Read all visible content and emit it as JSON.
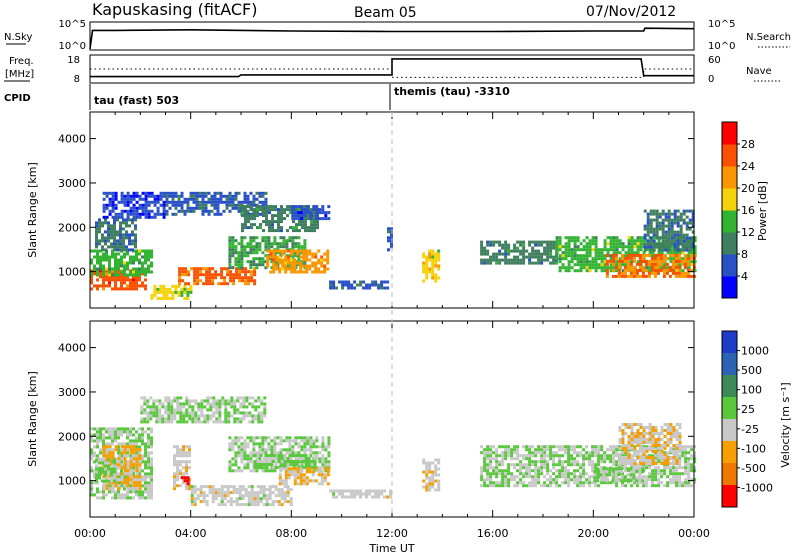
{
  "header": {
    "station": "Kapuskasing (fitACF)",
    "beam": "Beam 05",
    "date": "07/Nov/2012"
  },
  "params": {
    "nsky_label": "N.Sky",
    "nsearch_label": "N.Search",
    "freq_label_1": "Freq.",
    "freq_label_2": "[MHz]",
    "nave_label": "Nave",
    "cpid_label": "CPID",
    "left_ticks_top": [
      "10^5",
      "10^0"
    ],
    "right_ticks_top": [
      "10^5",
      "10^0"
    ],
    "left_ticks_freq": [
      "18",
      "8"
    ],
    "right_ticks_nave": [
      "60",
      "0"
    ],
    "cpid_segments": [
      {
        "label": "tau (fast) 503",
        "start_hour": 0
      },
      {
        "label": "themis (tau) -3310",
        "start_hour": 12
      }
    ]
  },
  "x_axis": {
    "label": "Time UT",
    "ticks": [
      "00:00",
      "04:00",
      "08:00",
      "12:00",
      "16:00",
      "20:00",
      "00:00"
    ]
  },
  "power_colorbar": {
    "label": "Power [dB]",
    "ticks": [
      "28",
      "24",
      "20",
      "16",
      "12",
      "8",
      "4"
    ],
    "colors": [
      "#0000ff",
      "#2a50c8",
      "#3f7f5f",
      "#32b432",
      "#f5d20a",
      "#fa9600",
      "#fa5000",
      "#ff0000"
    ]
  },
  "velocity_colorbar": {
    "label": "Velocity  [m s⁻¹]",
    "ticks": [
      "1000",
      "500",
      "100",
      "25",
      "-25",
      "-100",
      "-500",
      "-1000"
    ],
    "colors": [
      "#1e3cc8",
      "#2c64b4",
      "#3c8a5a",
      "#5ac83c",
      "#c8c8c8",
      "#f5a000",
      "#f07800",
      "#ff0000"
    ]
  },
  "chart_data": [
    {
      "type": "heatmap",
      "panel": "power",
      "xlabel": "",
      "ylabel": "Slant Range [km]",
      "xlim": [
        0,
        24
      ],
      "ylim": [
        180,
        4600
      ],
      "yticks": [
        1000,
        2000,
        3000,
        4000
      ],
      "clim": [
        0,
        32
      ],
      "patches": [
        {
          "t0": 0.0,
          "t1": 2.2,
          "r0": 600,
          "r1": 1050,
          "v": 26
        },
        {
          "t0": 0.0,
          "t1": 2.4,
          "r0": 900,
          "r1": 1500,
          "v": 14
        },
        {
          "t0": 0.2,
          "t1": 1.8,
          "r0": 1500,
          "r1": 2200,
          "v": 9
        },
        {
          "t0": 0.5,
          "t1": 3.0,
          "r0": 2200,
          "r1": 2800,
          "v": 5
        },
        {
          "t0": 2.4,
          "t1": 4.0,
          "r0": 400,
          "r1": 700,
          "v": 18
        },
        {
          "t0": 3.5,
          "t1": 6.5,
          "r0": 700,
          "r1": 1100,
          "v": 25
        },
        {
          "t0": 3.0,
          "t1": 7.0,
          "r0": 2300,
          "r1": 2800,
          "v": 7
        },
        {
          "t0": 5.5,
          "t1": 8.5,
          "r0": 1100,
          "r1": 1800,
          "v": 12
        },
        {
          "t0": 6.0,
          "t1": 9.0,
          "r0": 1900,
          "r1": 2500,
          "v": 10
        },
        {
          "t0": 7.0,
          "t1": 9.5,
          "r0": 1000,
          "r1": 1500,
          "v": 22
        },
        {
          "t0": 8.0,
          "t1": 9.5,
          "r0": 2200,
          "r1": 2500,
          "v": 6
        },
        {
          "t0": 9.5,
          "t1": 11.8,
          "r0": 650,
          "r1": 800,
          "v": 7
        },
        {
          "t0": 11.8,
          "t1": 12.0,
          "r0": 1500,
          "r1": 2000,
          "v": 6
        },
        {
          "t0": 13.2,
          "t1": 13.8,
          "r0": 800,
          "r1": 1500,
          "v": 18
        },
        {
          "t0": 15.5,
          "t1": 18.5,
          "r0": 1200,
          "r1": 1700,
          "v": 10
        },
        {
          "t0": 18.5,
          "t1": 24.0,
          "r0": 1000,
          "r1": 1800,
          "v": 14
        },
        {
          "t0": 20.5,
          "t1": 24.0,
          "r0": 900,
          "r1": 1400,
          "v": 24
        },
        {
          "t0": 22.0,
          "t1": 24.0,
          "r0": 1500,
          "r1": 2400,
          "v": 9
        }
      ]
    },
    {
      "type": "heatmap",
      "panel": "velocity",
      "xlabel": "Time UT",
      "ylabel": "Slant Range [km]",
      "xlim": [
        0,
        24
      ],
      "ylim": [
        180,
        4600
      ],
      "yticks": [
        1000,
        2000,
        3000,
        4000
      ],
      "clim": [
        -1200,
        1200
      ],
      "patches": [
        {
          "t0": 0.0,
          "t1": 2.5,
          "r0": 600,
          "r1": 2200,
          "v": 0
        },
        {
          "t0": 0.5,
          "t1": 2.0,
          "r0": 800,
          "r1": 1800,
          "v": -300
        },
        {
          "t0": 0.2,
          "t1": 1.0,
          "r0": 1000,
          "r1": 1500,
          "v": 60
        },
        {
          "t0": 2.0,
          "t1": 7.0,
          "r0": 2300,
          "r1": 2900,
          "v": 0
        },
        {
          "t0": 3.3,
          "t1": 4.0,
          "r0": 800,
          "r1": 1800,
          "v": -200
        },
        {
          "t0": 3.6,
          "t1": 3.9,
          "r0": 900,
          "r1": 1100,
          "v": -1100
        },
        {
          "t0": 4.0,
          "t1": 8.0,
          "r0": 450,
          "r1": 900,
          "v": -150
        },
        {
          "t0": 5.5,
          "t1": 9.5,
          "r0": 1200,
          "r1": 2000,
          "v": 10
        },
        {
          "t0": 6.5,
          "t1": 9.0,
          "r0": 1300,
          "r1": 1600,
          "v": 80
        },
        {
          "t0": 7.5,
          "t1": 9.5,
          "r0": 900,
          "r1": 1300,
          "v": -300
        },
        {
          "t0": 9.5,
          "t1": 12.0,
          "r0": 650,
          "r1": 800,
          "v": -150
        },
        {
          "t0": 13.2,
          "t1": 13.8,
          "r0": 800,
          "r1": 1500,
          "v": -200
        },
        {
          "t0": 15.5,
          "t1": 24.0,
          "r0": 900,
          "r1": 1800,
          "v": 0
        },
        {
          "t0": 21.0,
          "t1": 23.5,
          "r0": 1400,
          "r1": 2300,
          "v": -250
        },
        {
          "t0": 20.0,
          "t1": 22.0,
          "r0": 1000,
          "r1": 1300,
          "v": 50
        }
      ]
    },
    {
      "type": "line",
      "panel": "n-sky",
      "x": [
        0,
        0.1,
        1,
        4,
        8,
        12,
        16,
        20,
        22,
        22.05,
        24
      ],
      "y": [
        0.2,
        3.5,
        3.5,
        3.6,
        3.4,
        3.3,
        3.3,
        3.4,
        3.4,
        3.9,
        3.8
      ],
      "ylim": [
        0,
        5
      ]
    },
    {
      "type": "line",
      "panel": "frequency",
      "x": [
        0,
        5.9,
        6.0,
        12.0,
        12.0,
        21.9,
        22.0,
        24
      ],
      "y": [
        10.3,
        10.3,
        10.9,
        10.9,
        16.6,
        16.6,
        10.6,
        10.6
      ],
      "ylim": [
        8,
        18
      ]
    },
    {
      "type": "line",
      "panel": "nave",
      "x": [
        0,
        12,
        12,
        22,
        22,
        24
      ],
      "y": [
        30,
        30,
        12,
        12,
        30,
        30
      ],
      "ylim": [
        0,
        60
      ]
    }
  ]
}
